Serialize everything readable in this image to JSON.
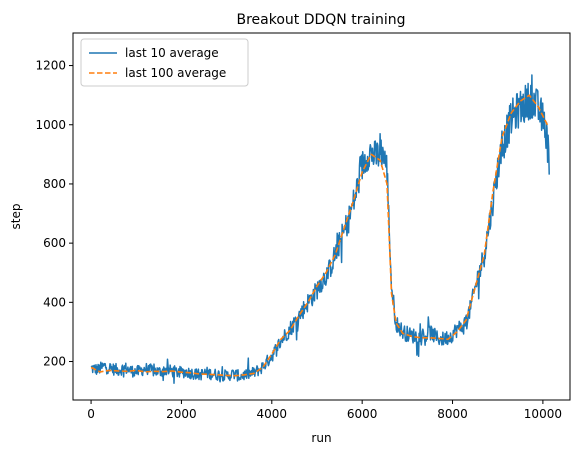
{
  "chart_data": {
    "type": "line",
    "title": "Breakout DDQN training",
    "xlabel": "run",
    "ylabel": "step",
    "xlim": [
      -400,
      10600
    ],
    "ylim": [
      70,
      1310
    ],
    "xticks": [
      0,
      2000,
      4000,
      6000,
      8000,
      10000
    ],
    "yticks": [
      200,
      400,
      600,
      800,
      1000,
      1200
    ],
    "grid": false,
    "legend_position": "top-left",
    "series": [
      {
        "name": "last 10 average",
        "style": "solid",
        "color": "#1f77b4",
        "noise_amplitude": 20,
        "x": [
          0,
          150,
          300,
          450,
          600,
          750,
          900,
          1050,
          1200,
          1350,
          1500,
          1650,
          1800,
          1950,
          2100,
          2250,
          2400,
          2550,
          2700,
          2850,
          3000,
          3150,
          3300,
          3450,
          3600,
          3750,
          3900,
          4050,
          4200,
          4350,
          4500,
          4650,
          4800,
          4950,
          5100,
          5250,
          5400,
          5550,
          5700,
          5850,
          6000,
          6150,
          6300,
          6450,
          6550,
          6650,
          6750,
          6900,
          7050,
          7200,
          7350,
          7500,
          7650,
          7800,
          7950,
          8100,
          8250,
          8400,
          8550,
          8700,
          8850,
          9000,
          9150,
          9300,
          9450,
          9600,
          9750,
          9900,
          10050,
          10150
        ],
        "y": [
          178,
          172,
          185,
          176,
          171,
          178,
          168,
          166,
          176,
          170,
          165,
          172,
          167,
          163,
          165,
          160,
          155,
          162,
          157,
          155,
          152,
          158,
          150,
          157,
          162,
          175,
          200,
          230,
          270,
          300,
          330,
          365,
          400,
          430,
          470,
          500,
          560,
          620,
          680,
          760,
          860,
          910,
          890,
          910,
          850,
          450,
          330,
          300,
          290,
          285,
          280,
          300,
          280,
          275,
          285,
          310,
          320,
          380,
          480,
          560,
          700,
          850,
          950,
          1020,
          1050,
          1070,
          1090,
          1050,
          1000,
          870
        ]
      },
      {
        "name": "last 100 average",
        "style": "dashed",
        "color": "#ff7f0e",
        "x": [
          0,
          200,
          400,
          600,
          800,
          1000,
          1200,
          1400,
          1600,
          1800,
          2000,
          2200,
          2400,
          2600,
          2800,
          3000,
          3200,
          3400,
          3600,
          3800,
          4000,
          4200,
          4400,
          4600,
          4800,
          5000,
          5200,
          5400,
          5600,
          5800,
          6000,
          6200,
          6400,
          6550,
          6650,
          6750,
          6900,
          7100,
          7300,
          7500,
          7700,
          7900,
          8100,
          8300,
          8500,
          8700,
          8900,
          9100,
          9300,
          9500,
          9700,
          9900,
          10100
        ],
        "y": [
          180,
          165,
          170,
          168,
          167,
          170,
          165,
          167,
          166,
          168,
          164,
          162,
          158,
          157,
          155,
          153,
          152,
          155,
          160,
          180,
          225,
          275,
          305,
          355,
          400,
          455,
          500,
          560,
          650,
          740,
          840,
          900,
          880,
          800,
          430,
          330,
          295,
          285,
          280,
          280,
          278,
          275,
          300,
          340,
          450,
          560,
          780,
          960,
          1040,
          1080,
          1100,
          1060,
          1000
        ]
      }
    ]
  }
}
